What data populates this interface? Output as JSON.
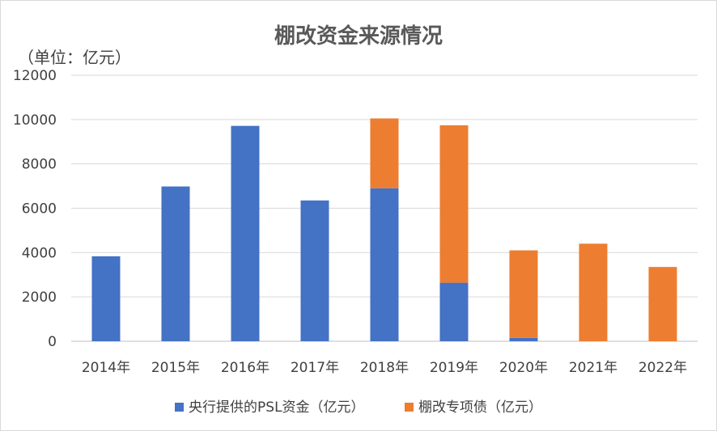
{
  "chart_data": {
    "type": "bar",
    "stacked": true,
    "title": "棚改资金来源情况",
    "unit_label": "（单位：亿元）",
    "categories": [
      "2014年",
      "2015年",
      "2016年",
      "2017年",
      "2018年",
      "2019年",
      "2020年",
      "2021年",
      "2022年"
    ],
    "series": [
      {
        "name": "央行提供的PSL资金（亿元）",
        "color": "#4472C4",
        "values": [
          3831,
          6981,
          9714,
          6350,
          6900,
          2640,
          150,
          0,
          0
        ]
      },
      {
        "name": "棚改专项债（亿元）",
        "color": "#ED7D31",
        "values": [
          0,
          0,
          0,
          0,
          3150,
          7100,
          3950,
          4400,
          3350
        ]
      }
    ],
    "ylim": [
      0,
      12000
    ],
    "yticks": [
      0,
      2000,
      4000,
      6000,
      8000,
      10000,
      12000
    ],
    "grid": true,
    "legend_position": "bottom"
  }
}
